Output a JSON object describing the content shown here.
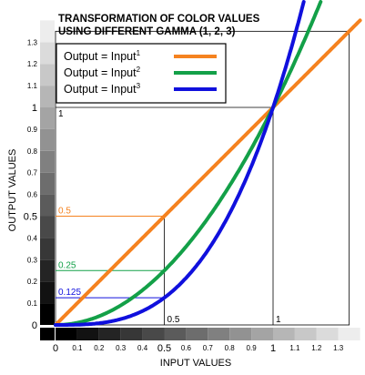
{
  "chart_data": {
    "type": "line",
    "title_lines": [
      "TRANSFORMATION OF COLOR VALUES",
      "USING DIFFERENT GAMMA (1, 2, 3)"
    ],
    "xlabel": "INPUT VALUES",
    "ylabel": "OUTPUT VALUES",
    "xlim": [
      0,
      1.35
    ],
    "ylim": [
      0,
      1.35
    ],
    "x_ticks": [
      {
        "v": 0,
        "t": "0",
        "big": true
      },
      {
        "v": 0.1,
        "t": "0.1",
        "big": false
      },
      {
        "v": 0.2,
        "t": "0.2",
        "big": false
      },
      {
        "v": 0.3,
        "t": "0.3",
        "big": false
      },
      {
        "v": 0.4,
        "t": "0.4",
        "big": false
      },
      {
        "v": 0.5,
        "t": "0.5",
        "big": true
      },
      {
        "v": 0.6,
        "t": "0.6",
        "big": false
      },
      {
        "v": 0.7,
        "t": "0.7",
        "big": false
      },
      {
        "v": 0.8,
        "t": "0.8",
        "big": false
      },
      {
        "v": 0.9,
        "t": "0.9",
        "big": false
      },
      {
        "v": 1,
        "t": "1",
        "big": true
      },
      {
        "v": 1.1,
        "t": "1.1",
        "big": false
      },
      {
        "v": 1.2,
        "t": "1.2",
        "big": false
      },
      {
        "v": 1.3,
        "t": "1.3",
        "big": false
      }
    ],
    "y_ticks": [
      {
        "v": 0,
        "t": "0",
        "big": true
      },
      {
        "v": 0.1,
        "t": "0.1",
        "big": false
      },
      {
        "v": 0.2,
        "t": "0.2",
        "big": false
      },
      {
        "v": 0.3,
        "t": "0.3",
        "big": false
      },
      {
        "v": 0.4,
        "t": "0.4",
        "big": false
      },
      {
        "v": 0.5,
        "t": "0.5",
        "big": true
      },
      {
        "v": 0.6,
        "t": "0.6",
        "big": false
      },
      {
        "v": 0.7,
        "t": "0.7",
        "big": false
      },
      {
        "v": 0.8,
        "t": "0.8",
        "big": false
      },
      {
        "v": 0.9,
        "t": "0.9",
        "big": false
      },
      {
        "v": 1,
        "t": "1",
        "big": true
      },
      {
        "v": 1.1,
        "t": "1.1",
        "big": false
      },
      {
        "v": 1.2,
        "t": "1.2",
        "big": false
      },
      {
        "v": 1.3,
        "t": "1.3",
        "big": false
      }
    ],
    "series": [
      {
        "name": "Output = Input",
        "exponent": "1",
        "gamma": 1,
        "color": "#f5821f"
      },
      {
        "name": "Output = Input",
        "exponent": "2",
        "gamma": 2,
        "color": "#13a048"
      },
      {
        "name": "Output = Input",
        "exponent": "3",
        "gamma": 3,
        "color": "#1010dd"
      }
    ],
    "annotations": [
      {
        "y": 0.5,
        "label": "0.5",
        "color": "#f5821f"
      },
      {
        "y": 0.25,
        "label": "0.25",
        "color": "#13a048"
      },
      {
        "y": 0.125,
        "label": "0.125",
        "color": "#1010dd"
      }
    ],
    "corner_labels": {
      "x_at_half": "0.5",
      "x_at_one": "1",
      "y_at_one": "1"
    },
    "legend_position": "top-left",
    "grid": false,
    "grayscale_bars": true
  }
}
